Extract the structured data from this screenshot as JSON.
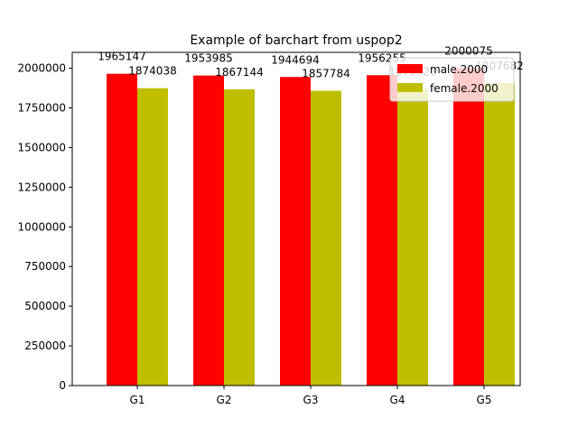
{
  "chart_data": {
    "type": "bar",
    "title": "Example of barchart from uspop2",
    "xlabel": "",
    "ylabel": "",
    "categories": [
      "G1",
      "G2",
      "G3",
      "G4",
      "G5"
    ],
    "series": [
      {
        "name": "male.2000",
        "color": "#ff0000",
        "values": [
          1965147,
          1953985,
          1944694,
          1956255,
          2000075
        ]
      },
      {
        "name": "female.2000",
        "color": "#bfbf00",
        "values": [
          1874038,
          1867144,
          1857784,
          1870920,
          1907682
        ]
      }
    ],
    "ylim": [
      0,
      2100000
    ],
    "yticks": [
      0,
      250000,
      500000,
      750000,
      1000000,
      1250000,
      1500000,
      1750000,
      2000000
    ],
    "ytick_labels": [
      "0",
      "250000",
      "500000",
      "750000",
      "1000000",
      "1250000",
      "1500000",
      "1750000",
      "2000000"
    ],
    "grid": false,
    "legend_position": "top-right",
    "data_labels": true
  }
}
